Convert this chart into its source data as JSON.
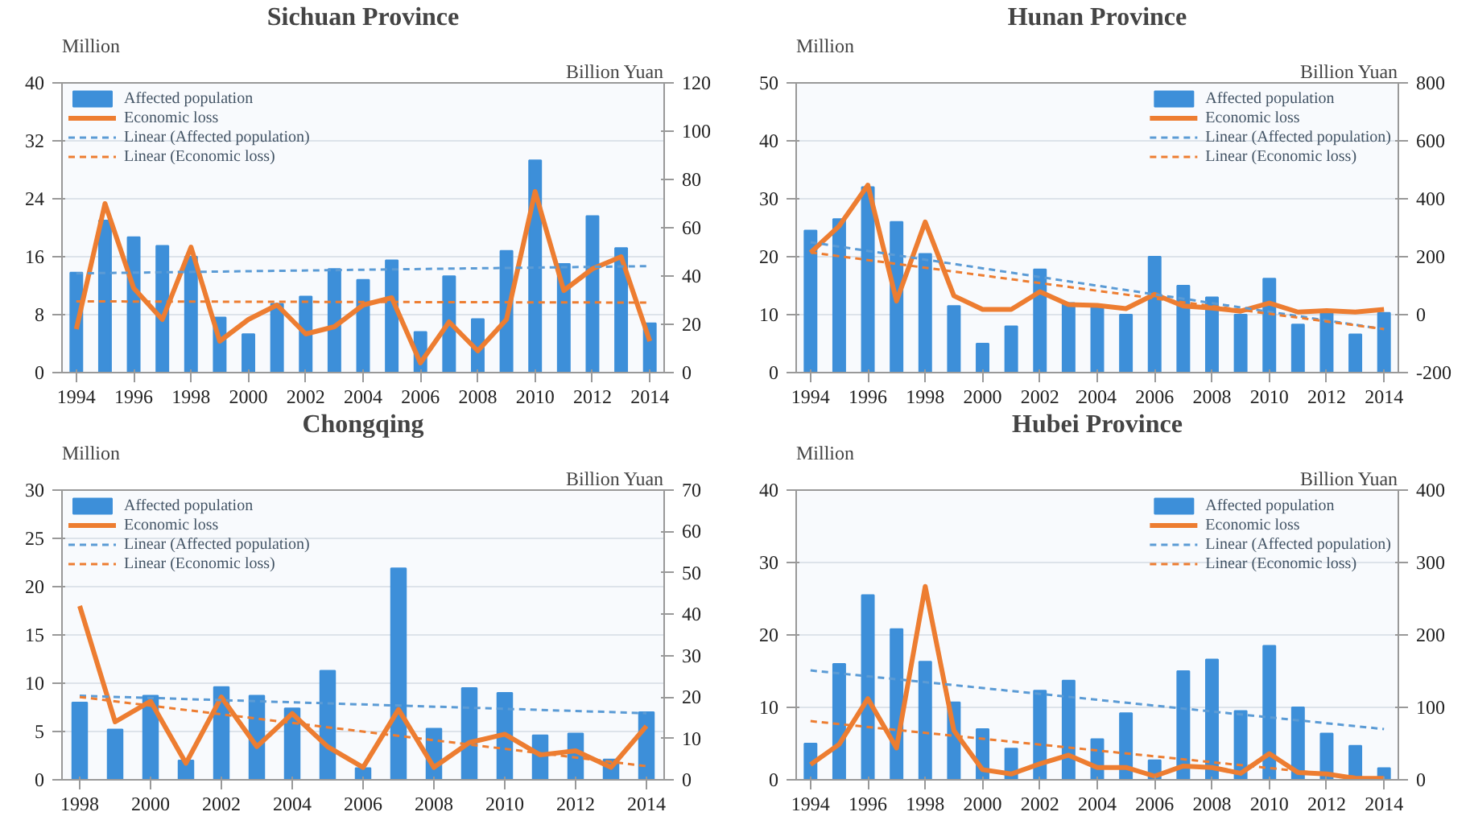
{
  "chart_data": [
    {
      "type": "bar",
      "title": "Sichuan Province",
      "ylabel": "Million",
      "y2label": "Billion Yuan",
      "legend": "top left",
      "grid": "y",
      "x": [
        1994,
        1995,
        1996,
        1997,
        1998,
        1999,
        2000,
        2001,
        2002,
        2003,
        2004,
        2005,
        2006,
        2007,
        2008,
        2009,
        2010,
        2011,
        2012,
        2013,
        2014
      ],
      "xlim": [
        1993.5,
        2014.5
      ],
      "xticks": [
        1994,
        1996,
        1998,
        2000,
        2002,
        2004,
        2006,
        2008,
        2010,
        2012,
        2014
      ],
      "ylim": [
        0,
        40
      ],
      "yticks": [
        0,
        8,
        16,
        24,
        32,
        40
      ],
      "y2lim": [
        0,
        120
      ],
      "y2ticks": [
        0,
        20,
        40,
        60,
        80,
        100,
        120
      ],
      "series": [
        {
          "name": "Affected population",
          "color": "#3d8fd9",
          "values": [
            13.8,
            21,
            18.7,
            17.5,
            16,
            7.6,
            5.3,
            9.5,
            10.5,
            14.3,
            12.8,
            15.5,
            5.6,
            13.3,
            7.4,
            16.8,
            29.3,
            15,
            21.6,
            17.2,
            6.8
          ]
        },
        {
          "name": "Economic loss",
          "type": "line",
          "axis": "y2",
          "line_style": "solid",
          "color": "#ed7d31",
          "values": [
            18,
            70,
            35,
            22,
            52,
            13,
            22,
            28,
            16,
            19,
            28,
            31,
            4,
            21,
            9,
            22,
            75,
            34,
            43,
            48,
            13
          ]
        },
        {
          "name": "Linear (Affected population)",
          "type": "line",
          "line_style": "dashed",
          "color": "#5b9bd5",
          "x": [
            1994,
            2014
          ],
          "values": [
            13.7,
            14.7
          ]
        },
        {
          "name": "Linear (Economic loss)",
          "type": "line",
          "axis": "y2",
          "line_style": "dashed",
          "color": "#ed7d31",
          "x": [
            1994,
            2014
          ],
          "values": [
            29.5,
            29
          ]
        }
      ]
    },
    {
      "type": "bar",
      "title": "Hunan Province",
      "ylabel": "Million",
      "y2label": "Billion Yuan",
      "legend": "top right",
      "grid": "y",
      "x": [
        1994,
        1995,
        1996,
        1997,
        1998,
        1999,
        2000,
        2001,
        2002,
        2003,
        2004,
        2005,
        2006,
        2007,
        2008,
        2009,
        2010,
        2011,
        2012,
        2013,
        2014
      ],
      "xlim": [
        1993.5,
        2014.5
      ],
      "xticks": [
        1994,
        1996,
        1998,
        2000,
        2002,
        2004,
        2006,
        2008,
        2010,
        2012,
        2014
      ],
      "ylim": [
        0,
        50
      ],
      "yticks": [
        0,
        10,
        20,
        30,
        40,
        50
      ],
      "y2lim": [
        -200,
        800
      ],
      "y2ticks": [
        -200,
        0,
        200,
        400,
        600,
        800
      ],
      "series": [
        {
          "name": "Affected population",
          "color": "#3d8fd9",
          "values": [
            24.5,
            26.5,
            32,
            26,
            20.5,
            11.5,
            5,
            8,
            17.8,
            12,
            11.5,
            10,
            20,
            15,
            13,
            10,
            16.2,
            8.3,
            10.8,
            6.6,
            10.3
          ]
        },
        {
          "name": "Economic loss",
          "type": "line",
          "axis": "y2",
          "line_style": "solid",
          "color": "#ed7d31",
          "values": [
            214,
            306,
            447,
            47,
            320,
            65,
            18,
            18,
            79,
            35,
            32,
            21,
            70,
            30,
            23,
            12,
            40,
            9,
            14,
            9,
            18
          ]
        },
        {
          "name": "Linear (Affected population)",
          "type": "line",
          "line_style": "dashed",
          "color": "#5b9bd5",
          "x": [
            1994,
            2014
          ],
          "values": [
            22.5,
            7.5
          ]
        },
        {
          "name": "Linear (Economic loss)",
          "type": "line",
          "axis": "y2",
          "line_style": "dashed",
          "color": "#ed7d31",
          "x": [
            1994,
            2014
          ],
          "values": [
            215,
            -50
          ]
        }
      ]
    },
    {
      "type": "bar",
      "title": "Chongqing",
      "ylabel": "Million",
      "y2label": "Billion Yuan",
      "legend": "top left",
      "grid": "y",
      "x": [
        1998,
        1999,
        2000,
        2001,
        2002,
        2003,
        2004,
        2005,
        2006,
        2007,
        2008,
        2009,
        2010,
        2011,
        2012,
        2013,
        2014
      ],
      "xlim": [
        1997.5,
        2014.5
      ],
      "xticks": [
        1998,
        2000,
        2002,
        2004,
        2006,
        2008,
        2010,
        2012,
        2014
      ],
      "ylim": [
        0,
        30
      ],
      "yticks": [
        0,
        5,
        10,
        15,
        20,
        25,
        30
      ],
      "y2lim": [
        0,
        70
      ],
      "y2ticks": [
        0,
        10,
        20,
        30,
        40,
        50,
        60,
        70
      ],
      "series": [
        {
          "name": "Affected population",
          "color": "#3d8fd9",
          "values": [
            8,
            5.2,
            8.7,
            2,
            9.6,
            8.7,
            7.4,
            11.3,
            1.2,
            21.9,
            5.3,
            9.5,
            9,
            4.6,
            4.8,
            2.1,
            7
          ]
        },
        {
          "name": "Economic loss",
          "type": "line",
          "axis": "y2",
          "line_style": "solid",
          "color": "#ed7d31",
          "values": [
            42,
            14,
            19,
            4,
            20,
            8,
            16,
            8,
            3,
            17,
            3,
            9,
            11,
            6,
            7,
            3,
            13
          ]
        },
        {
          "name": "Linear (Affected population)",
          "type": "line",
          "line_style": "dashed",
          "color": "#5b9bd5",
          "x": [
            1998,
            2014
          ],
          "values": [
            8.7,
            6.9
          ]
        },
        {
          "name": "Linear (Economic loss)",
          "type": "line",
          "axis": "y2",
          "line_style": "dashed",
          "color": "#ed7d31",
          "x": [
            1998,
            2014
          ],
          "values": [
            20,
            3.3
          ]
        }
      ]
    },
    {
      "type": "bar",
      "title": "Hubei Province",
      "ylabel": "Million",
      "y2label": "Billion Yuan",
      "legend": "top right",
      "grid": "y",
      "x": [
        1994,
        1995,
        1996,
        1997,
        1998,
        1999,
        2000,
        2001,
        2002,
        2003,
        2004,
        2005,
        2006,
        2007,
        2008,
        2009,
        2010,
        2011,
        2012,
        2013,
        2014
      ],
      "xlim": [
        1993.5,
        2014.5
      ],
      "xticks": [
        1994,
        1996,
        1998,
        2000,
        2002,
        2004,
        2006,
        2008,
        2010,
        2012,
        2014
      ],
      "ylim": [
        0,
        40
      ],
      "yticks": [
        0,
        10,
        20,
        30,
        40
      ],
      "y2lim": [
        0,
        400
      ],
      "y2ticks": [
        0,
        100,
        200,
        300,
        400
      ],
      "series": [
        {
          "name": "Affected population",
          "color": "#3d8fd9",
          "values": [
            5,
            16,
            25.5,
            20.8,
            16.3,
            10.7,
            7,
            4.3,
            12.3,
            13.7,
            5.6,
            9.2,
            2.7,
            15,
            16.6,
            9.5,
            18.5,
            10,
            6.4,
            4.7,
            1.6
          ]
        },
        {
          "name": "Economic loss",
          "type": "line",
          "axis": "y2",
          "line_style": "solid",
          "color": "#ed7d31",
          "values": [
            21,
            49,
            112,
            44,
            267,
            68,
            14,
            8,
            22,
            34,
            17,
            17,
            5,
            19,
            17,
            9,
            36,
            10,
            8,
            2,
            2
          ]
        },
        {
          "name": "Linear (Affected population)",
          "type": "line",
          "line_style": "dashed",
          "color": "#5b9bd5",
          "x": [
            1994,
            2014
          ],
          "values": [
            15.1,
            7
          ]
        },
        {
          "name": "Linear (Economic loss)",
          "type": "line",
          "axis": "y2",
          "line_style": "dashed",
          "color": "#ed7d31",
          "x": [
            1994,
            2014
          ],
          "values": [
            81,
            0
          ]
        }
      ]
    }
  ]
}
